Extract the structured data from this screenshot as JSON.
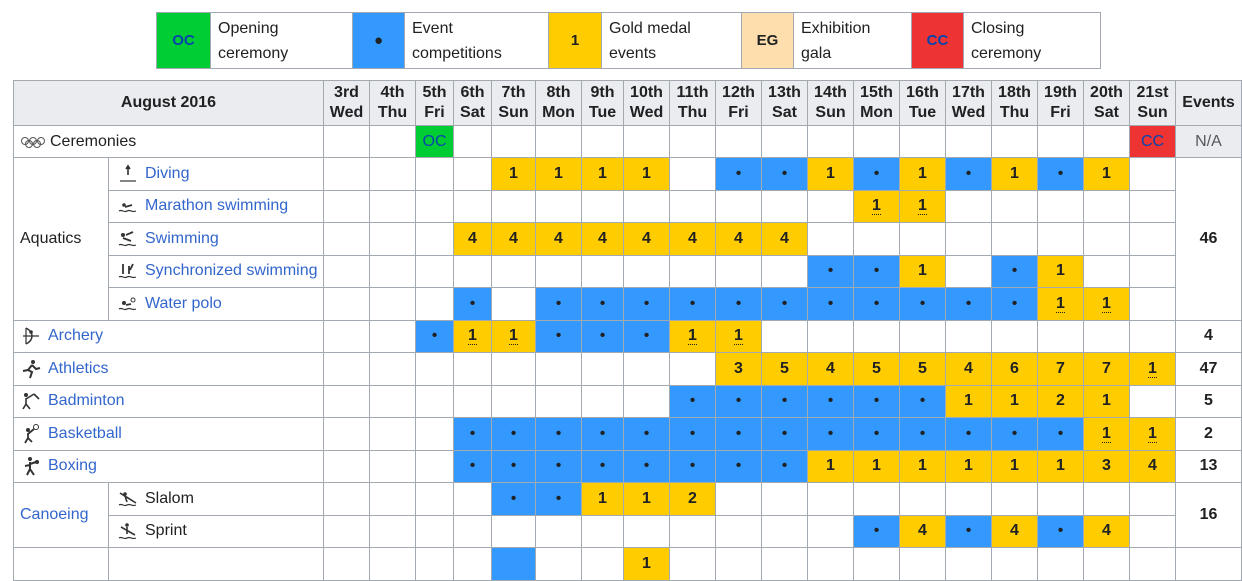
{
  "legend": [
    {
      "code": "OC",
      "text1": "Opening",
      "text2": "ceremony",
      "color": "#00cc33",
      "textcolor": "#0645ad"
    },
    {
      "code": "●",
      "text1": "Event",
      "text2": "competitions",
      "color": "#3399ff",
      "textcolor": "#202122"
    },
    {
      "code": "1",
      "text1": "Gold medal",
      "text2": "events",
      "color": "#ffcc00",
      "textcolor": "#202122"
    },
    {
      "code": "EG",
      "text1": "Exhibition",
      "text2": "gala",
      "color": "#ffdead",
      "textcolor": "#202122"
    },
    {
      "code": "CC",
      "text1": "Closing",
      "text2": "ceremony",
      "color": "#ee3333",
      "textcolor": "#0645ad"
    }
  ],
  "header": {
    "month": "August 2016",
    "events": "Events",
    "days": [
      {
        "d": "3rd",
        "w": "Wed"
      },
      {
        "d": "4th",
        "w": "Thu"
      },
      {
        "d": "5th",
        "w": "Fri"
      },
      {
        "d": "6th",
        "w": "Sat"
      },
      {
        "d": "7th",
        "w": "Sun"
      },
      {
        "d": "8th",
        "w": "Mon"
      },
      {
        "d": "9th",
        "w": "Tue"
      },
      {
        "d": "10th",
        "w": "Wed"
      },
      {
        "d": "11th",
        "w": "Thu"
      },
      {
        "d": "12th",
        "w": "Fri"
      },
      {
        "d": "13th",
        "w": "Sat"
      },
      {
        "d": "14th",
        "w": "Sun"
      },
      {
        "d": "15th",
        "w": "Mon"
      },
      {
        "d": "16th",
        "w": "Tue"
      },
      {
        "d": "17th",
        "w": "Wed"
      },
      {
        "d": "18th",
        "w": "Thu"
      },
      {
        "d": "19th",
        "w": "Fri"
      },
      {
        "d": "20th",
        "w": "Sat"
      },
      {
        "d": "21st",
        "w": "Sun"
      }
    ]
  },
  "ceremonies": {
    "label": "Ceremonies",
    "total": "N/A",
    "oc": "OC",
    "cc": "CC"
  },
  "groups": {
    "aquatics": "Aquatics",
    "canoeing": "Canoeing"
  },
  "rows": [
    {
      "name": "Diving",
      "icon": "diving-icon",
      "cells": [
        "",
        "",
        "",
        "",
        "1",
        "1",
        "1",
        "1",
        "",
        "•",
        "•",
        "1",
        "•",
        "1",
        "•",
        "1",
        "•",
        "1",
        ""
      ]
    },
    {
      "name": "Marathon swimming",
      "icon": "marathon-swimming-icon",
      "cells": [
        "",
        "",
        "",
        "",
        "",
        "",
        "",
        "",
        "",
        "",
        "",
        "",
        "1u",
        "1u",
        "",
        "",
        "",
        "",
        ""
      ]
    },
    {
      "name": "Swimming",
      "icon": "swimming-icon",
      "cells": [
        "",
        "",
        "",
        "4",
        "4",
        "4",
        "4",
        "4",
        "4",
        "4",
        "4",
        "",
        "",
        "",
        "",
        "",
        "",
        "",
        ""
      ],
      "total": "46"
    },
    {
      "name": "Synchronized swimming",
      "icon": "synchronized-swimming-icon",
      "cells": [
        "",
        "",
        "",
        "",
        "",
        "",
        "",
        "",
        "",
        "",
        "",
        "•",
        "•",
        "1",
        "",
        "•",
        "1",
        "",
        ""
      ]
    },
    {
      "name": "Water polo",
      "icon": "water-polo-icon",
      "cells": [
        "",
        "",
        "",
        "•",
        "",
        "•",
        "•",
        "•",
        "•",
        "•",
        "•",
        "•",
        "•",
        "•",
        "•",
        "•",
        "1u",
        "1u",
        ""
      ]
    },
    {
      "name": "Archery",
      "icon": "archery-icon",
      "cells": [
        "",
        "",
        "•",
        "1u",
        "1u",
        "•",
        "•",
        "•",
        "1u",
        "1u",
        "",
        "",
        "",
        "",
        "",
        "",
        "",
        "",
        ""
      ],
      "total": "4"
    },
    {
      "name": "Athletics",
      "icon": "athletics-icon",
      "cells": [
        "",
        "",
        "",
        "",
        "",
        "",
        "",
        "",
        "",
        "3",
        "5",
        "4",
        "5",
        "5",
        "4",
        "6",
        "7",
        "7",
        "1u"
      ],
      "total": "47"
    },
    {
      "name": "Badminton",
      "icon": "badminton-icon",
      "cells": [
        "",
        "",
        "",
        "",
        "",
        "",
        "",
        "",
        "•",
        "•",
        "•",
        "•",
        "•",
        "•",
        "1",
        "1",
        "2",
        "1",
        ""
      ],
      "total": "5"
    },
    {
      "name": "Basketball",
      "icon": "basketball-icon",
      "cells": [
        "",
        "",
        "",
        "•",
        "•",
        "•",
        "•",
        "•",
        "•",
        "•",
        "•",
        "•",
        "•",
        "•",
        "•",
        "•",
        "•",
        "1u",
        "1u"
      ],
      "total": "2"
    },
    {
      "name": "Boxing",
      "icon": "boxing-icon",
      "cells": [
        "",
        "",
        "",
        "•",
        "•",
        "•",
        "•",
        "•",
        "•",
        "•",
        "•",
        "1",
        "1",
        "1",
        "1",
        "1",
        "1",
        "3",
        "4"
      ],
      "total": "13"
    },
    {
      "name": "Slalom",
      "icon": "slalom-icon",
      "cells": [
        "",
        "",
        "",
        "",
        "•",
        "•",
        "1",
        "1",
        "2",
        "",
        "",
        "",
        "",
        "",
        "",
        "",
        "",
        "",
        ""
      ]
    },
    {
      "name": "Sprint",
      "icon": "sprint-icon",
      "cells": [
        "",
        "",
        "",
        "",
        "",
        "",
        "",
        "",
        "",
        "",
        "",
        "",
        "•",
        "4",
        "•",
        "4",
        "•",
        "4",
        ""
      ]
    }
  ],
  "canoeing_total": "16",
  "partial_next_row": "1",
  "colors": {
    "gold": "#ffcc00",
    "event": "#3399ff",
    "oc": "#00cc33",
    "cc": "#ee3333",
    "header": "#eaecf0",
    "link": "#3366cc"
  }
}
